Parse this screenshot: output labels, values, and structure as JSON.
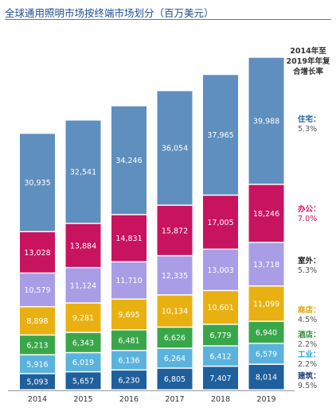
{
  "chart_data": {
    "type": "bar",
    "stacked": true,
    "title": "全球通用照明市场按终端市场划分（百万美元）",
    "categories": [
      "2014",
      "2015",
      "2016",
      "2017",
      "2018",
      "2019"
    ],
    "series": [
      {
        "name": "建筑",
        "cagr": "9.5%",
        "color": "#1f5f9c",
        "values": [
          5093,
          5657,
          6230,
          6805,
          7407,
          8014
        ]
      },
      {
        "name": "工业",
        "cagr": "2.2%",
        "color": "#5bb3dd",
        "values": [
          5916,
          6019,
          6136,
          6264,
          6412,
          6579
        ]
      },
      {
        "name": "酒店",
        "cagr": "2.2%",
        "color": "#3aa64a",
        "values": [
          6213,
          6343,
          6481,
          6626,
          6779,
          6940
        ]
      },
      {
        "name": "商店",
        "cagr": "4.5%",
        "color": "#e8b111",
        "values": [
          8898,
          9281,
          9695,
          10134,
          10601,
          11099
        ]
      },
      {
        "name": "室外",
        "cagr": "5.3%",
        "color": "#a99de6",
        "values": [
          10579,
          11124,
          11710,
          12335,
          13003,
          13718
        ]
      },
      {
        "name": "办公",
        "cagr": "7.0%",
        "color": "#c8135f",
        "values": [
          13028,
          13884,
          14831,
          15872,
          17005,
          18246
        ]
      },
      {
        "name": "住宅",
        "cagr": "5.3%",
        "color": "#5f8fbe",
        "values": [
          30935,
          32541,
          34246,
          36054,
          37965,
          39988
        ]
      }
    ],
    "legend_title": "2014年至2019年年复合增长率",
    "legend_placement": "right"
  },
  "name_colors": {
    "建筑": "#1f3f7a",
    "工业": "#2a9fd8",
    "酒店": "#2e8b3a",
    "商店": "#e0a000",
    "室外": "#222222",
    "办公": "#c8135f",
    "住宅": "#1f5f9c"
  }
}
